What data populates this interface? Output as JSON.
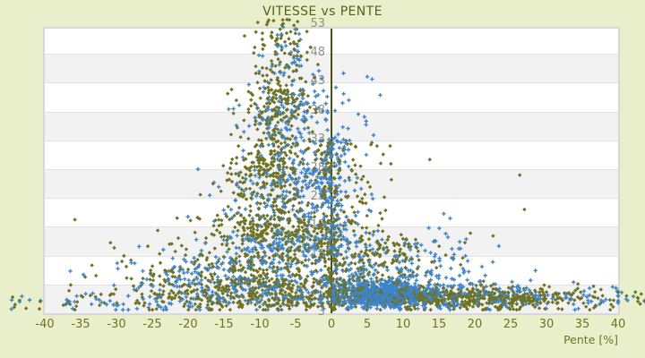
{
  "chart_data": {
    "type": "scatter",
    "title": "VITESSE vs PENTE",
    "xlabel": "Pente [%]",
    "ylabel": "",
    "xlim": [
      -40,
      40
    ],
    "ylim": [
      3,
      53
    ],
    "x_ticks": [
      -40,
      -35,
      -30,
      -25,
      -20,
      -15,
      -10,
      -5,
      0,
      5,
      10,
      15,
      20,
      25,
      30,
      35,
      40
    ],
    "y_ticks": [
      3,
      8,
      13,
      18,
      23,
      28,
      33,
      38,
      43,
      48,
      53
    ],
    "grid": "horizontal-bands-alternating",
    "legend": "none",
    "colors": {
      "background": "#e9efca",
      "band_light": "#ffffff",
      "band_dark": "#f2f2f2",
      "gridline": "#e2e2e2",
      "frame_border": "#d8d8d8",
      "axis_line": "#4a4f12",
      "title_text": "#57611a",
      "x_tick_text": "#6d7427",
      "y_tick_text": "#8f9183"
    },
    "description": "Dense scatter of speed (3-53) vs slope percent (-40..40). Triangular mountain of points peaking near slope -7 reaching speed 53; dense blue cluster of climbing speeds 4-9 between slopes 0 and 20; olive band of low speeds extending to slope 40; sparse low-speed points out to and beyond both slope extremes; dark vertical axis drawn at slope 0.",
    "series": [
      {
        "name": "serie-olive",
        "marker": "diamond",
        "color": "#6f7221",
        "clusters": [
          {
            "n": 150,
            "x": [
              "g",
              -7.2,
              2.0
            ],
            "y": [
              "u",
              36,
              54
            ]
          },
          {
            "n": 200,
            "x": [
              "g",
              -7.8,
              2.6
            ],
            "y": [
              "u",
              26,
              42
            ]
          },
          {
            "n": 260,
            "x": [
              "g",
              -8.5,
              3.6
            ],
            "y": [
              "u",
              16,
              30
            ]
          },
          {
            "n": 300,
            "x": [
              "g",
              -9.0,
              5.2
            ],
            "y": [
              "u",
              8,
              20
            ]
          },
          {
            "n": 260,
            "x": [
              "g",
              -8.0,
              6.5
            ],
            "y": [
              "u",
              4,
              9
            ]
          },
          {
            "n": 100,
            "x": [
              "g",
              -21.0,
              5.5
            ],
            "y": [
              "g",
              8.0,
              3.0
            ],
            "cy": [
              3.6,
              20
            ]
          },
          {
            "n": 150,
            "x": [
              "g",
              -0.2,
              0.9
            ],
            "y": [
              "u",
              4,
              33
            ]
          },
          {
            "n": 110,
            "x": [
              "g",
              3.5,
              2.6
            ],
            "y": [
              "u",
              9,
              33
            ]
          },
          {
            "n": 130,
            "x": [
              "g",
              8.0,
              3.5
            ],
            "y": [
              "u",
              6,
              16
            ]
          },
          {
            "n": 500,
            "x": [
              "g",
              17.0,
              9.0
            ],
            "y": [
              "g",
              5.7,
              0.9
            ],
            "cx": [
              0.5,
              40
            ],
            "cy": [
              3.7,
              9
            ]
          },
          {
            "n": 210,
            "x": [
              "u",
              -38,
              40
            ],
            "y": [
              "g",
              5.5,
              1.2
            ],
            "cy": [
              3.6,
              9
            ]
          },
          {
            "n": 80,
            "x": [
              "g",
              -4.0,
              13.0
            ],
            "y": [
              "g",
              13.0,
              7.0
            ],
            "cy": [
              3.6,
              50
            ]
          },
          {
            "n": 7,
            "x": [
              "u",
              -45,
              -40.5
            ],
            "y": [
              "g",
              5.2,
              0.8
            ]
          },
          {
            "n": 9,
            "x": [
              "u",
              40.5,
              44.5
            ],
            "y": [
              "g",
              5.4,
              0.8
            ]
          }
        ]
      },
      {
        "name": "serie-bleue",
        "marker": "plus",
        "color": "#3d84cc",
        "clusters": [
          {
            "n": 80,
            "x": [
              "g",
              -6.0,
              2.4
            ],
            "y": [
              "u",
              34,
              53
            ]
          },
          {
            "n": 140,
            "x": [
              "g",
              -6.0,
              3.4
            ],
            "y": [
              "u",
              24,
              40
            ]
          },
          {
            "n": 210,
            "x": [
              "g",
              -6.0,
              5.0
            ],
            "y": [
              "u",
              14,
              28
            ]
          },
          {
            "n": 260,
            "x": [
              "g",
              -5.0,
              7.0
            ],
            "y": [
              "u",
              5,
              16
            ]
          },
          {
            "n": 150,
            "x": [
              "g",
              -19.0,
              6.0
            ],
            "y": [
              "g",
              8.0,
              3.0
            ],
            "cy": [
              3.6,
              18
            ]
          },
          {
            "n": 120,
            "x": [
              "g",
              0.0,
              1.3
            ],
            "y": [
              "u",
              13,
              34
            ]
          },
          {
            "n": 700,
            "x": [
              "g",
              7.5,
              3.6
            ],
            "y": [
              "g",
              6.4,
              1.1
            ],
            "cx": [
              0.3,
              22
            ],
            "cy": [
              4,
              10
            ]
          },
          {
            "n": 170,
            "x": [
              "g",
              12.0,
              6.0
            ],
            "y": [
              "g",
              11.0,
              3.5
            ],
            "cx": [
              -2,
              40
            ],
            "cy": [
              3.8,
              22
            ]
          },
          {
            "n": 120,
            "x": [
              "g",
              25.0,
              8.0
            ],
            "y": [
              "g",
              6.0,
              1.2
            ],
            "cx": [
              2,
              40
            ],
            "cy": [
              3.8,
              9
            ]
          },
          {
            "n": 130,
            "x": [
              "u",
              -38,
              40
            ],
            "y": [
              "g",
              5.2,
              1.0
            ],
            "cy": [
              3.6,
              8.5
            ]
          },
          {
            "n": 25,
            "x": [
              "g",
              1.5,
              3.5
            ],
            "y": [
              "u",
              28,
              45
            ]
          },
          {
            "n": 6,
            "x": [
              "u",
              -45,
              -40.5
            ],
            "y": [
              "g",
              5.0,
              0.8
            ]
          },
          {
            "n": 7,
            "x": [
              "u",
              40.5,
              44.5
            ],
            "y": [
              "g",
              5.5,
              0.8
            ]
          }
        ]
      }
    ]
  }
}
